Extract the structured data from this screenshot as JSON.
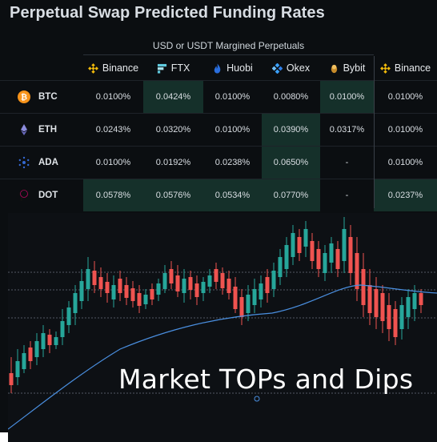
{
  "title": "Perpetual Swap Predicted Funding Rates",
  "group_header": "USD or USDT Margined Perpetuals",
  "exchanges": [
    {
      "name": "Binance",
      "icon": "binance-icon",
      "color": "#f0b90b"
    },
    {
      "name": "FTX",
      "icon": "ftx-icon",
      "color": "#5fcade"
    },
    {
      "name": "Huobi",
      "icon": "huobi-icon",
      "color": "#2a6ede"
    },
    {
      "name": "Okex",
      "icon": "okex-icon",
      "color": "#3aa0ff"
    },
    {
      "name": "Bybit",
      "icon": "bybit-icon",
      "color": "#e0a030"
    },
    {
      "name": "Binance",
      "icon": "binance-icon",
      "color": "#f0b90b"
    }
  ],
  "rows": [
    {
      "coin": "BTC",
      "icon": "btc-icon",
      "rates": [
        "0.0100%",
        "0.0424%",
        "0.0100%",
        "0.0080%",
        "0.0100%",
        "0.0100%"
      ]
    },
    {
      "coin": "ETH",
      "icon": "eth-icon",
      "rates": [
        "0.0243%",
        "0.0320%",
        "0.0100%",
        "0.0390%",
        "0.0317%",
        "0.0100%"
      ]
    },
    {
      "coin": "ADA",
      "icon": "ada-icon",
      "rates": [
        "0.0100%",
        "0.0192%",
        "0.0238%",
        "0.0650%",
        "-",
        "0.0100%"
      ]
    },
    {
      "coin": "DOT",
      "icon": "dot-icon",
      "rates": [
        "0.0578%",
        "0.0576%",
        "0.0534%",
        "0.0770%",
        "-",
        "0.0237%"
      ]
    }
  ],
  "caption": "Market TOPs and Dips",
  "colors": {
    "up": "#26a69a",
    "down": "#ef5350",
    "ma": "#4a8fe0",
    "highlight": "#15302a"
  }
}
